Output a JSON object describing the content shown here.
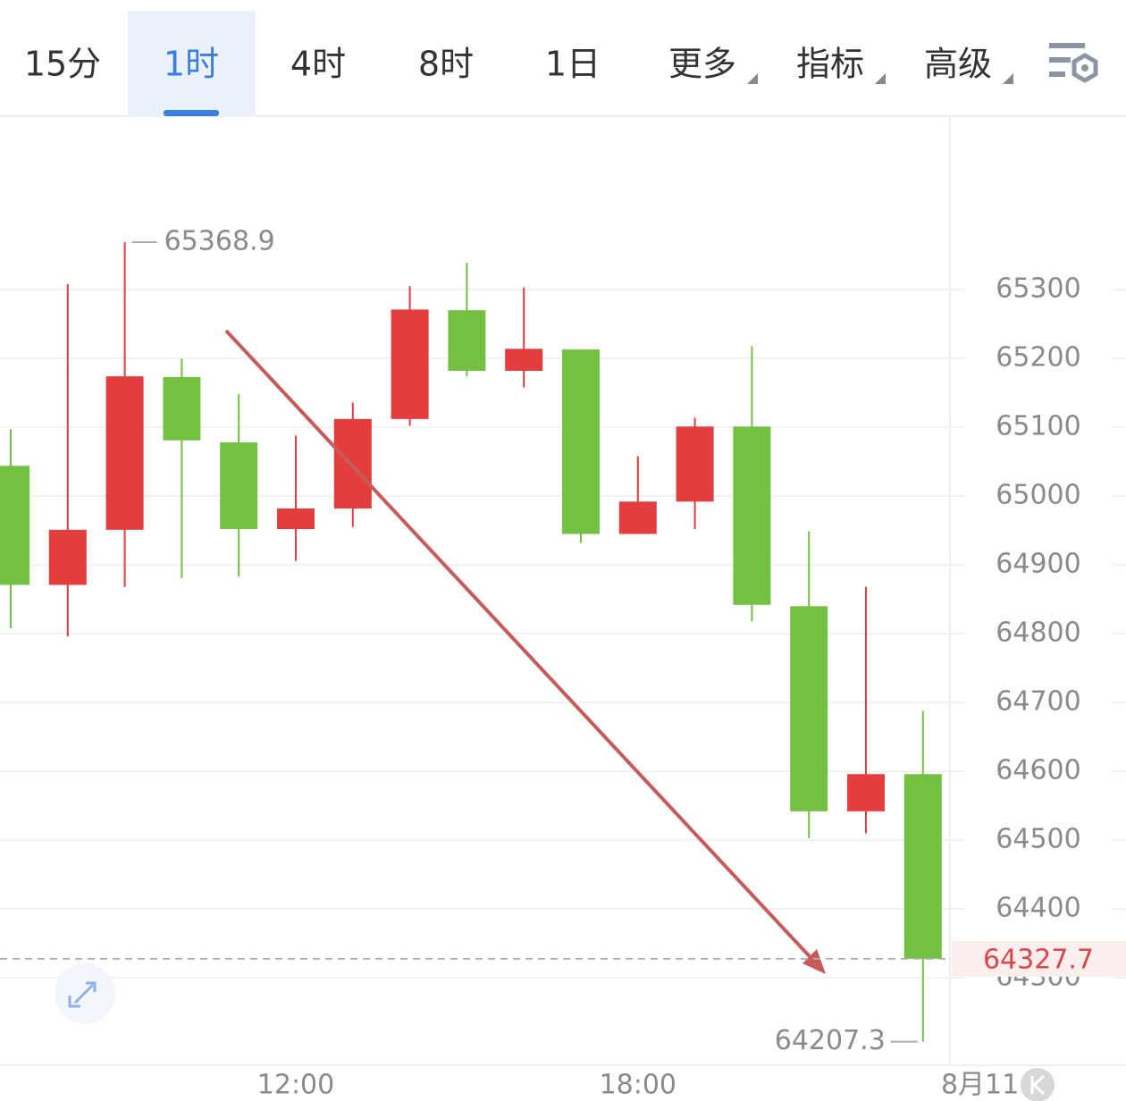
{
  "tabs": [
    {
      "label": "15分"
    },
    {
      "label": "1时"
    },
    {
      "label": "4时"
    },
    {
      "label": "8时"
    },
    {
      "label": "1日"
    },
    {
      "label": "更多",
      "dropdown": true
    },
    {
      "label": "指标",
      "dropdown": true
    },
    {
      "label": "高级",
      "dropdown": true
    }
  ],
  "active_tab": 1,
  "chart_data": {
    "type": "candlestick",
    "categories": [
      null,
      null,
      null,
      null,
      null,
      "12:00",
      null,
      null,
      null,
      null,
      null,
      "18:00",
      null,
      null,
      null,
      null,
      null,
      "8月11"
    ],
    "open": [
      65044,
      64871,
      64951,
      65173,
      65078,
      64952,
      64982,
      65112,
      65270,
      65182,
      65213,
      64945,
      64992,
      65101,
      64840,
      64542,
      64596,
      null
    ],
    "high": [
      65097,
      65308,
      65368.9,
      65200,
      65148,
      65088,
      65136,
      65305,
      65339,
      65303,
      65213,
      65058,
      65114,
      65218,
      64949,
      64868,
      64688,
      null
    ],
    "low": [
      64808,
      64796,
      64868,
      64881,
      64883,
      64906,
      64955,
      65102,
      65174,
      65158,
      64932,
      64945,
      64952,
      64818,
      64503,
      64510,
      64207.3,
      null
    ],
    "close": [
      64871,
      64951,
      65174,
      65081,
      64952,
      64982,
      65112,
      65271,
      65182,
      65214,
      64945,
      64992,
      65101,
      64842,
      64542,
      64596,
      64327.7,
      null
    ],
    "up_color": "#e33d3d",
    "down_color": "#74c043",
    "ylim": [
      64173,
      65552
    ],
    "yticks": [
      64300,
      64400,
      64500,
      64600,
      64700,
      64800,
      64900,
      65000,
      65100,
      65200,
      65300
    ],
    "grid": true
  }
}
